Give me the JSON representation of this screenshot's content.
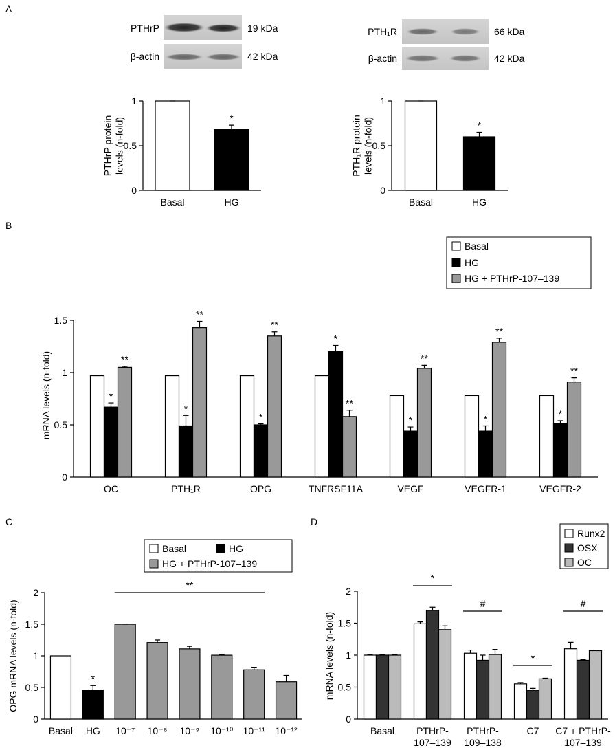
{
  "panel_labels": [
    "A",
    "B",
    "C",
    "D"
  ],
  "blots": [
    {
      "protein": "PTHrP",
      "size": "19 kDa"
    },
    {
      "protein": "β-actin",
      "size": "42 kDa"
    },
    {
      "protein": "PTH₁R",
      "size": "66 kDa"
    },
    {
      "protein": "β-actin",
      "size": "42 kDa"
    }
  ],
  "chart_data": [
    {
      "type": "bar",
      "y_label": "PTHrP protein\nlevels (n-fold)",
      "categories": [
        "Basal",
        "HG"
      ],
      "values": [
        1,
        0.68
      ],
      "errors": [
        0,
        0.05
      ],
      "colors": [
        "#ffffff",
        "#000000"
      ],
      "sig": [
        null,
        "*"
      ],
      "ylim": [
        0,
        1
      ],
      "yticks": [
        0,
        0.5,
        1
      ]
    },
    {
      "type": "bar",
      "y_label": "PTH₁R protein\nlevels (n-fold)",
      "categories": [
        "Basal",
        "HG"
      ],
      "values": [
        1,
        0.6
      ],
      "errors": [
        0,
        0.05
      ],
      "colors": [
        "#ffffff",
        "#000000"
      ],
      "sig": [
        null,
        "*"
      ],
      "ylim": [
        0,
        1
      ],
      "yticks": [
        0,
        0.5,
        1
      ]
    },
    {
      "type": "bar",
      "y_label": "mRNA levels (n-fold)",
      "categories": [
        "OC",
        "PTH₁R",
        "OPG",
        "TNFRSF11A",
        "VEGF",
        "VEGFR-1",
        "VEGFR-2"
      ],
      "series": [
        {
          "name": "Basal",
          "color": "#ffffff",
          "values": [
            0.97,
            0.97,
            0.97,
            0.97,
            0.78,
            0.78,
            0.78
          ]
        },
        {
          "name": "HG",
          "color": "#000000",
          "values": [
            0.67,
            0.49,
            0.5,
            1.2,
            0.44,
            0.44,
            0.51
          ],
          "errors": [
            0.04,
            0.1,
            0.01,
            0.06,
            0.04,
            0.05,
            0.03
          ],
          "sig": [
            "*",
            "*",
            "*",
            "*",
            "*",
            "*",
            "*"
          ]
        },
        {
          "name": "HG + PTHrP-107–139",
          "color": "#999999",
          "values": [
            1.05,
            1.43,
            1.35,
            0.58,
            1.04,
            1.29,
            0.91
          ],
          "errors": [
            0.01,
            0.06,
            0.04,
            0.06,
            0.03,
            0.04,
            0.04
          ],
          "sig": [
            "**",
            "**",
            "**",
            "**",
            "**",
            "**",
            "**"
          ]
        }
      ],
      "ylim": [
        0,
        1.5
      ],
      "yticks": [
        0,
        0.5,
        1,
        1.5
      ],
      "legend": "upper right"
    },
    {
      "type": "bar",
      "y_label": "OPG mRNA levels (n-fold)",
      "grouped": false,
      "categories": [
        "Basal",
        "HG",
        "10⁻⁷",
        "10⁻⁸",
        "10⁻⁹",
        "10⁻¹⁰",
        "10⁻¹¹",
        "10⁻¹²"
      ],
      "series": [
        {
          "name": "Basal",
          "color": "#ffffff",
          "values": [
            1.0,
            null,
            null,
            null,
            null,
            null,
            null,
            null
          ]
        },
        {
          "name": "HG",
          "color": "#000000",
          "values": [
            null,
            0.46,
            null,
            null,
            null,
            null,
            null,
            null
          ],
          "errors": [
            null,
            0.07,
            null,
            null,
            null,
            null,
            null,
            null
          ],
          "sig": [
            null,
            "*",
            null,
            null,
            null,
            null,
            null,
            null
          ]
        },
        {
          "name": "HG + PTHrP-107–139",
          "color": "#999999",
          "values": [
            null,
            null,
            1.5,
            1.21,
            1.11,
            1.01,
            0.78,
            0.59
          ],
          "errors": [
            null,
            null,
            0,
            0.04,
            0.04,
            0.01,
            0.04,
            0.1
          ]
        }
      ],
      "brackets": [
        {
          "label": "**"
        }
      ],
      "ylim": [
        0,
        2
      ],
      "yticks": [
        0,
        0.5,
        1,
        1.5,
        2
      ],
      "legend": "upper right"
    },
    {
      "type": "bar",
      "y_label": "mRNA levels (n-fold)",
      "categories": [
        "Basal",
        "PTHrP-\n107–139",
        "PTHrP-\n109–138",
        "C7",
        "C7 + PTHrP-\n107–139"
      ],
      "series": [
        {
          "name": "Runx2",
          "color": "#ffffff",
          "values": [
            1.0,
            1.49,
            1.03,
            0.55,
            1.1
          ],
          "errors": [
            0.01,
            0.03,
            0.05,
            0.02,
            0.1
          ]
        },
        {
          "name": "OSX",
          "color": "#333333",
          "values": [
            1.0,
            1.7,
            0.92,
            0.45,
            0.92
          ],
          "errors": [
            0.01,
            0.05,
            0.08,
            0.03,
            0.01
          ]
        },
        {
          "name": "OC",
          "color": "#bbbbbb",
          "values": [
            1.0,
            1.4,
            1.01,
            0.63,
            1.07
          ],
          "errors": [
            0.01,
            0.06,
            0.08,
            0.01,
            0.01
          ]
        }
      ],
      "brackets": [
        {
          "label": "*"
        },
        {
          "label": "#"
        },
        {
          "label": "*"
        },
        {
          "label": "#"
        }
      ],
      "ylim": [
        0,
        2
      ],
      "yticks": [
        0,
        0.5,
        1,
        1.5,
        2
      ],
      "legend": "upper right"
    }
  ]
}
